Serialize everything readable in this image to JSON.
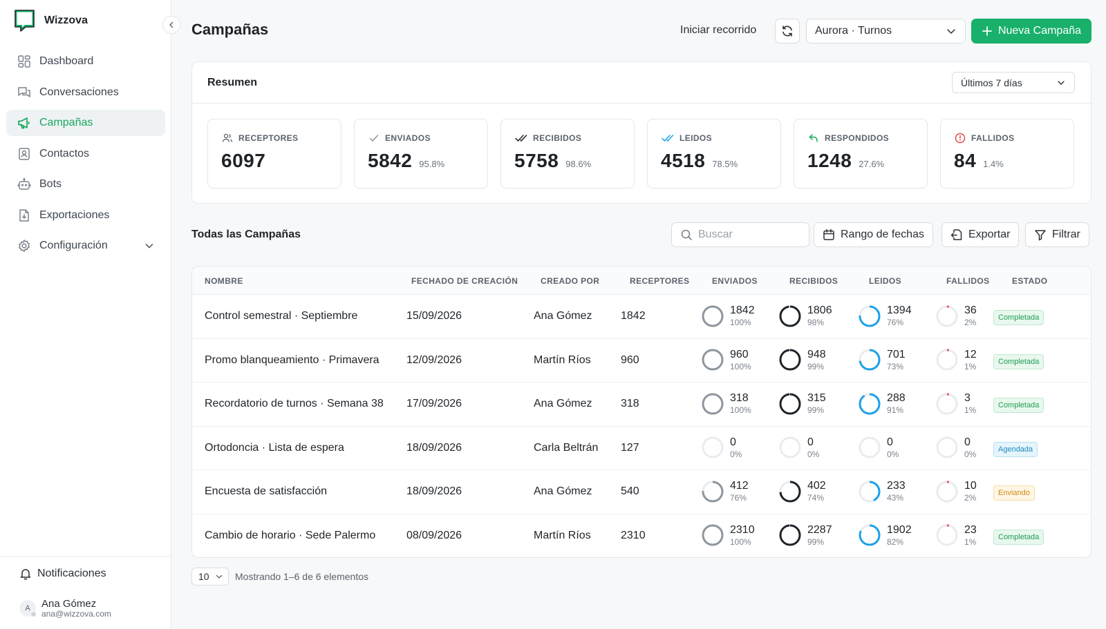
{
  "app": {
    "brand": "Wizzova",
    "accent": "#18b06a"
  },
  "sidebar": {
    "items": [
      {
        "label": "Dashboard",
        "icon": "dashboard-icon"
      },
      {
        "label": "Conversaciones",
        "icon": "chat-icon"
      },
      {
        "label": "Campañas",
        "icon": "megaphone-icon",
        "active": true
      },
      {
        "label": "Contactos",
        "icon": "contact-icon"
      },
      {
        "label": "Bots",
        "icon": "bot-icon"
      },
      {
        "label": "Exportaciones",
        "icon": "export-icon"
      },
      {
        "label": "Configuración",
        "icon": "gear-icon"
      }
    ],
    "notifications_label": "Notificaciones",
    "user": {
      "initial": "A",
      "name": "Ana Gómez",
      "email": "ana@wizzova.com"
    }
  },
  "header": {
    "title": "Campañas",
    "tour_label": "Iniciar recorrido",
    "account": "Aurora · Turnos",
    "new_label": "Nueva Campaña"
  },
  "summary": {
    "title": "Resumen",
    "period": "Últimos 7 días",
    "stats": [
      {
        "label": "RECEPTORES",
        "value": "6097",
        "pct": ""
      },
      {
        "label": "ENVIADOS",
        "value": "5842",
        "pct": "95.8%"
      },
      {
        "label": "RECIBIDOS",
        "value": "5758",
        "pct": "98.6%"
      },
      {
        "label": "LEIDOS",
        "value": "4518",
        "pct": "78.5%"
      },
      {
        "label": "RESPONDIDOS",
        "value": "1248",
        "pct": "27.6%"
      },
      {
        "label": "FALLIDOS",
        "value": "84",
        "pct": "1.4%"
      }
    ]
  },
  "campaigns": {
    "title": "Todas las Campañas",
    "search_placeholder": "Buscar",
    "date_range_label": "Rango de fechas",
    "export_label": "Exportar",
    "filter_label": "Filtrar",
    "columns": [
      "NOMBRE",
      "FECHADO DE CREACIÓN",
      "CREADO POR",
      "RECEPTORES",
      "ENVIADOS",
      "RECIBIDOS",
      "LEIDOS",
      "FALLIDOS",
      "ESTADO"
    ],
    "rows": [
      {
        "name": "Control semestral · Septiembre",
        "date": "15/09/2026",
        "by": "Ana Gómez",
        "recv": "1842",
        "sent": "1842",
        "sent_pct": "100%",
        "received": "1806",
        "received_pct": "98%",
        "read": "1394",
        "read_pct": "76%",
        "failed": "36",
        "failed_pct": "2%",
        "status": "Completada",
        "status_kind": "done"
      },
      {
        "name": "Promo blanqueamiento · Primavera",
        "date": "12/09/2026",
        "by": "Martín Ríos",
        "recv": "960",
        "sent": "960",
        "sent_pct": "100%",
        "received": "948",
        "received_pct": "99%",
        "read": "701",
        "read_pct": "73%",
        "failed": "12",
        "failed_pct": "1%",
        "status": "Completada",
        "status_kind": "done"
      },
      {
        "name": "Recordatorio de turnos · Semana 38",
        "date": "17/09/2026",
        "by": "Ana Gómez",
        "recv": "318",
        "sent": "318",
        "sent_pct": "100%",
        "received": "315",
        "received_pct": "99%",
        "read": "288",
        "read_pct": "91%",
        "failed": "3",
        "failed_pct": "1%",
        "status": "Completada",
        "status_kind": "done"
      },
      {
        "name": "Ortodoncia · Lista de espera",
        "date": "18/09/2026",
        "by": "Carla Beltrán",
        "recv": "127",
        "sent": "0",
        "sent_pct": "0%",
        "received": "0",
        "received_pct": "0%",
        "read": "0",
        "read_pct": "0%",
        "failed": "0",
        "failed_pct": "0%",
        "status": "Agendada",
        "status_kind": "scheduled"
      },
      {
        "name": "Encuesta de satisfacción",
        "date": "18/09/2026",
        "by": "Ana Gómez",
        "recv": "540",
        "sent": "412",
        "sent_pct": "76%",
        "received": "402",
        "received_pct": "74%",
        "read": "233",
        "read_pct": "43%",
        "failed": "10",
        "failed_pct": "2%",
        "status": "Enviando",
        "status_kind": "sending"
      },
      {
        "name": "Cambio de horario · Sede Palermo",
        "date": "08/09/2026",
        "by": "Martín Ríos",
        "recv": "2310",
        "sent": "2310",
        "sent_pct": "100%",
        "received": "2287",
        "received_pct": "99%",
        "read": "1902",
        "read_pct": "82%",
        "failed": "23",
        "failed_pct": "1%",
        "status": "Completada",
        "status_kind": "done"
      }
    ],
    "page_size": "10",
    "showing": "Mostrando 1–6 de 6 elementos"
  },
  "colors": {
    "sent": "#8e969f",
    "received": "#1f2328",
    "read": "#1da1e8",
    "failed": "#e5484d",
    "track": "#e9ecef"
  }
}
